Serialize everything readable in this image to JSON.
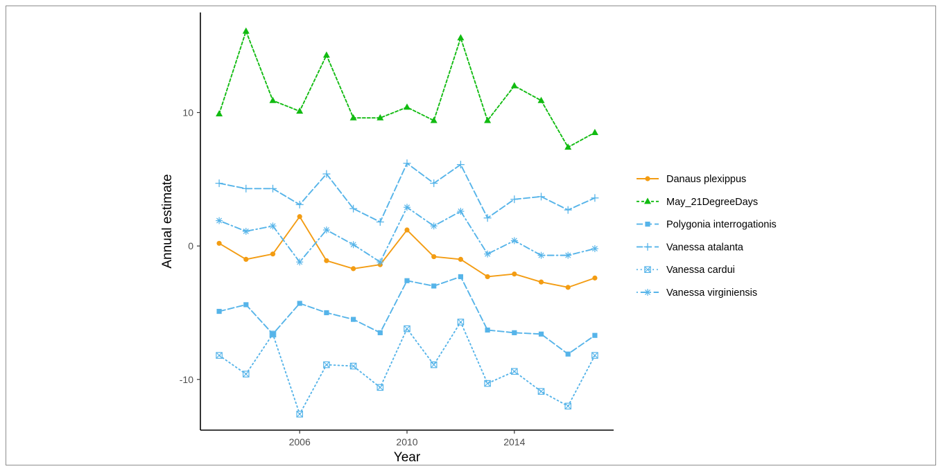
{
  "chart_data": {
    "type": "line",
    "xlabel": "Year",
    "ylabel": "Annual estimate",
    "x": [
      2003,
      2004,
      2005,
      2006,
      2007,
      2008,
      2009,
      2010,
      2011,
      2012,
      2013,
      2014,
      2015,
      2016,
      2017
    ],
    "xlim": [
      2002.3,
      2017.7
    ],
    "ylim": [
      -13.8,
      17.5
    ],
    "x_ticks": [
      2006,
      2010,
      2014
    ],
    "y_ticks": [
      -10,
      0,
      10
    ],
    "x_tick_labels": [
      "2006",
      "2010",
      "2014"
    ],
    "y_tick_labels": [
      "-10",
      "0",
      "10"
    ],
    "grid": false,
    "legend_position": "right",
    "series": [
      {
        "name": "Danaus plexippus",
        "color": "#F39C12",
        "marker": "circle",
        "line_style": "solid",
        "values": [
          0.2,
          -1.0,
          -0.6,
          2.2,
          -1.1,
          -1.7,
          -1.4,
          1.2,
          -0.8,
          -1.0,
          -2.3,
          -2.1,
          -2.7,
          -3.1,
          -2.4
        ]
      },
      {
        "name": "May_21DegreeDays",
        "color": "#11BB11",
        "marker": "triangle",
        "line_style": "dashed",
        "values": [
          9.9,
          16.1,
          10.9,
          10.1,
          14.3,
          9.6,
          9.6,
          10.4,
          9.4,
          15.6,
          9.4,
          12.0,
          10.9,
          7.4,
          8.5
        ]
      },
      {
        "name": "Polygonia interrogationis",
        "color": "#56B4E9",
        "marker": "square",
        "line_style": "longdash",
        "values": [
          -4.9,
          -4.4,
          -6.6,
          -4.3,
          -5.0,
          -5.5,
          -6.5,
          -2.6,
          -3.0,
          -2.3,
          -6.3,
          -6.5,
          -6.6,
          -8.1,
          -6.7
        ]
      },
      {
        "name": "Vanessa atalanta",
        "color": "#56B4E9",
        "marker": "plus",
        "line_style": "longdash",
        "values": [
          4.7,
          4.3,
          4.3,
          3.1,
          5.4,
          2.8,
          1.8,
          6.2,
          4.7,
          6.1,
          2.1,
          3.5,
          3.7,
          2.7,
          3.6
        ]
      },
      {
        "name": "Vanessa cardui",
        "color": "#56B4E9",
        "marker": "boxcross",
        "line_style": "dotted",
        "values": [
          -8.2,
          -9.6,
          -6.6,
          -12.6,
          -8.9,
          -9.0,
          -10.6,
          -6.2,
          -8.9,
          -5.7,
          -10.3,
          -9.4,
          -10.9,
          -12.0,
          -8.2
        ]
      },
      {
        "name": "Vanessa virginiensis",
        "color": "#56B4E9",
        "marker": "asterisk",
        "line_style": "dotdash",
        "values": [
          1.9,
          1.1,
          1.5,
          -1.2,
          1.2,
          0.1,
          -1.2,
          2.9,
          1.5,
          2.6,
          -0.6,
          0.4,
          -0.7,
          -0.7,
          -0.2
        ]
      }
    ]
  }
}
